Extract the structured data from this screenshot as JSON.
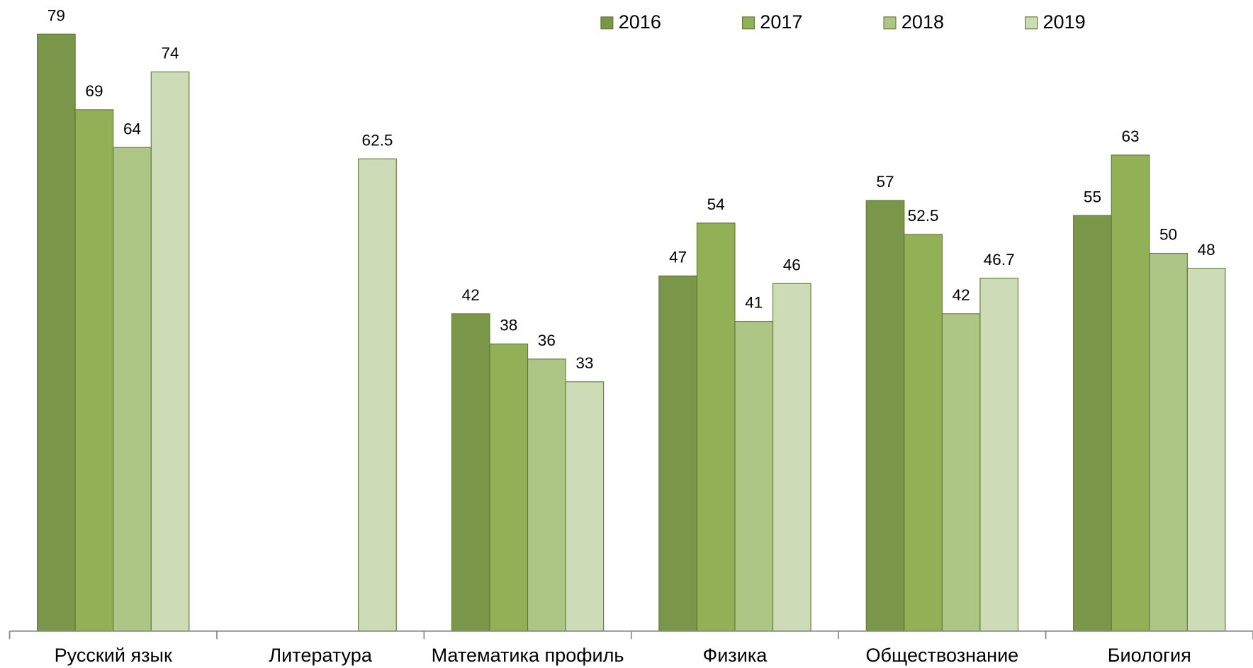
{
  "chart_data": {
    "type": "bar",
    "categories": [
      "Русский язык",
      "Литература",
      "Математика профиль",
      "Физика",
      "Обществознание",
      "Биология"
    ],
    "series": [
      {
        "name": "2016",
        "color": "#7a9648",
        "values": [
          79,
          null,
          42,
          47,
          57,
          55
        ]
      },
      {
        "name": "2017",
        "color": "#92b056",
        "values": [
          69,
          null,
          38,
          54,
          52.5,
          63
        ]
      },
      {
        "name": "2018",
        "color": "#adc686",
        "values": [
          64,
          null,
          36,
          41,
          42,
          50
        ]
      },
      {
        "name": "2019",
        "color": "#cddbb6",
        "values": [
          74,
          62.5,
          33,
          46,
          46.7,
          48
        ]
      }
    ],
    "ylim": [
      0,
      83.5
    ]
  }
}
